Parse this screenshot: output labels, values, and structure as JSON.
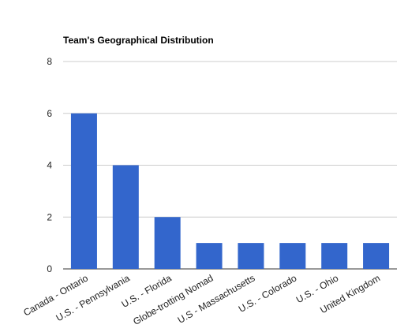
{
  "chart_data": {
    "type": "bar",
    "title": "Team's Geographical Distribution",
    "xlabel": "",
    "ylabel": "",
    "categories": [
      "Canada - Ontario",
      "U.S. - Pennsylvania",
      "U.S. - Florida",
      "Globe-trotting Nomad",
      "U.S - Massachusetts",
      "U.S. - Colorado",
      "U.S. - Ohio",
      "United Kingdom"
    ],
    "values": [
      6,
      4,
      2,
      1,
      1,
      1,
      1,
      1
    ],
    "ylim": [
      0,
      8
    ],
    "yticks": [
      "0",
      "2",
      "4",
      "6",
      "8"
    ],
    "grid": true,
    "legend": "none",
    "bar_color": "#3366cc"
  }
}
